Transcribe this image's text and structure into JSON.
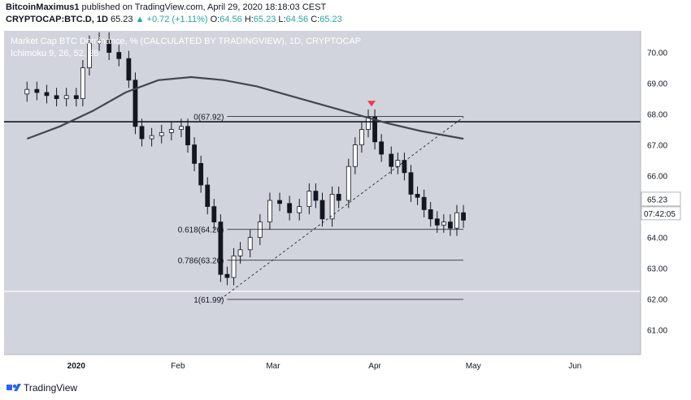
{
  "header": {
    "author": "BitcoinMaximus1",
    "published_text": "published on TradingView.com, April 29, 2020 18:18:03 CEST",
    "symbol": "CRYPTOCAP:BTC.D, 1D",
    "last": "65.23",
    "change": "+0.72 (+1.11%)",
    "open_label": "O:",
    "open": "64.56",
    "high_label": "H:",
    "high": "65.23",
    "low_label": "L:",
    "low": "64.56",
    "close_label": "C:",
    "close": "65.23"
  },
  "legend": {
    "title": "Market Cap BTC Dominance, % (CALCULATED BY TRADINGVIEW), 1D, CRYPTOCAP",
    "indicator": "Ichimoku 9, 26, 52, 26"
  },
  "footer": {
    "brand": "TradingView"
  },
  "colors": {
    "plot_bg": "#d1d4dc",
    "candle_up": "#ffffff",
    "candle_down": "#131722",
    "ma_line": "#434651",
    "marker": "#f23645",
    "price_tag_bg": "#ffffff"
  },
  "chart_data": {
    "type": "candlestick",
    "title": "Market Cap BTC Dominance, % (CALCULATED BY TRADINGVIEW), 1D, CRYPTOCAP",
    "x_tick_labels": [
      "2020",
      "Feb",
      "Mar",
      "Apr",
      "May",
      "Jun"
    ],
    "y_tick_labels": [
      "61.00",
      "62.00",
      "63.00",
      "64.00",
      "65.00",
      "66.00",
      "67.00",
      "68.00",
      "69.00",
      "70.00"
    ],
    "ylim": [
      60.2,
      70.7
    ],
    "last_price_label": "65.23",
    "countdown_label": "07:42:05",
    "close_series": [
      {
        "date": "2019-12-17",
        "close": 68.8
      },
      {
        "date": "2019-12-20",
        "close": 68.7
      },
      {
        "date": "2019-12-23",
        "close": 68.6
      },
      {
        "date": "2019-12-26",
        "close": 68.5
      },
      {
        "date": "2019-12-29",
        "close": 68.6
      },
      {
        "date": "2020-01-01",
        "close": 68.5
      },
      {
        "date": "2020-01-03",
        "close": 69.5
      },
      {
        "date": "2020-01-05",
        "close": 70.3
      },
      {
        "date": "2020-01-08",
        "close": 70.4
      },
      {
        "date": "2020-01-11",
        "close": 70.0
      },
      {
        "date": "2020-01-14",
        "close": 69.8
      },
      {
        "date": "2020-01-17",
        "close": 69.1
      },
      {
        "date": "2020-01-19",
        "close": 67.6
      },
      {
        "date": "2020-01-21",
        "close": 67.2
      },
      {
        "date": "2020-01-24",
        "close": 67.3
      },
      {
        "date": "2020-01-27",
        "close": 67.4
      },
      {
        "date": "2020-01-30",
        "close": 67.5
      },
      {
        "date": "2020-02-02",
        "close": 67.6
      },
      {
        "date": "2020-02-04",
        "close": 67.0
      },
      {
        "date": "2020-02-06",
        "close": 66.4
      },
      {
        "date": "2020-02-08",
        "close": 65.7
      },
      {
        "date": "2020-02-10",
        "close": 65.0
      },
      {
        "date": "2020-02-12",
        "close": 64.5
      },
      {
        "date": "2020-02-14",
        "close": 62.8
      },
      {
        "date": "2020-02-16",
        "close": 62.7
      },
      {
        "date": "2020-02-18",
        "close": 63.4
      },
      {
        "date": "2020-02-20",
        "close": 63.6
      },
      {
        "date": "2020-02-23",
        "close": 64.0
      },
      {
        "date": "2020-02-26",
        "close": 64.5
      },
      {
        "date": "2020-02-29",
        "close": 65.2
      },
      {
        "date": "2020-03-03",
        "close": 65.1
      },
      {
        "date": "2020-03-06",
        "close": 64.8
      },
      {
        "date": "2020-03-09",
        "close": 65.0
      },
      {
        "date": "2020-03-12",
        "close": 65.5
      },
      {
        "date": "2020-03-14",
        "close": 65.2
      },
      {
        "date": "2020-03-16",
        "close": 64.6
      },
      {
        "date": "2020-03-19",
        "close": 65.4
      },
      {
        "date": "2020-03-21",
        "close": 65.2
      },
      {
        "date": "2020-03-24",
        "close": 66.3
      },
      {
        "date": "2020-03-26",
        "close": 67.0
      },
      {
        "date": "2020-03-28",
        "close": 67.5
      },
      {
        "date": "2020-03-30",
        "close": 67.9
      },
      {
        "date": "2020-04-01",
        "close": 67.1
      },
      {
        "date": "2020-04-03",
        "close": 66.7
      },
      {
        "date": "2020-04-06",
        "close": 66.3
      },
      {
        "date": "2020-04-08",
        "close": 66.5
      },
      {
        "date": "2020-04-10",
        "close": 66.1
      },
      {
        "date": "2020-04-12",
        "close": 65.4
      },
      {
        "date": "2020-04-14",
        "close": 65.3
      },
      {
        "date": "2020-04-16",
        "close": 64.9
      },
      {
        "date": "2020-04-18",
        "close": 64.6
      },
      {
        "date": "2020-04-20",
        "close": 64.4
      },
      {
        "date": "2020-04-22",
        "close": 64.5
      },
      {
        "date": "2020-04-24",
        "close": 64.3
      },
      {
        "date": "2020-04-26",
        "close": 64.8
      },
      {
        "date": "2020-04-28",
        "close": 64.56
      }
    ],
    "moving_average": [
      {
        "date": "2019-12-17",
        "value": 67.2
      },
      {
        "date": "2019-12-27",
        "value": 67.6
      },
      {
        "date": "2020-01-06",
        "value": 68.1
      },
      {
        "date": "2020-01-16",
        "value": 68.7
      },
      {
        "date": "2020-01-26",
        "value": 69.1
      },
      {
        "date": "2020-02-05",
        "value": 69.2
      },
      {
        "date": "2020-02-15",
        "value": 69.1
      },
      {
        "date": "2020-02-25",
        "value": 68.9
      },
      {
        "date": "2020-03-06",
        "value": 68.6
      },
      {
        "date": "2020-03-16",
        "value": 68.3
      },
      {
        "date": "2020-03-26",
        "value": 68.0
      },
      {
        "date": "2020-04-05",
        "value": 67.7
      },
      {
        "date": "2020-04-15",
        "value": 67.45
      },
      {
        "date": "2020-04-28",
        "value": 67.2
      }
    ],
    "horizontal_levels": [
      {
        "name": "resistance",
        "value": 67.75
      },
      {
        "name": "support",
        "value": 62.25
      }
    ],
    "fib_levels": [
      {
        "label": "0(67.92)",
        "value": 67.92
      },
      {
        "label": "0.618(64.26)",
        "value": 64.26
      },
      {
        "label": "0.786(63.26)",
        "value": 63.26
      },
      {
        "label": "1(61.99)",
        "value": 61.99
      }
    ],
    "trendline": {
      "from": {
        "date": "2020-02-14",
        "value": 62.0
      },
      "to": {
        "date": "2020-04-28",
        "value": 67.9
      }
    },
    "markers": [
      {
        "date": "2020-03-31",
        "value": 68.3,
        "shape": "down-triangle"
      }
    ]
  }
}
